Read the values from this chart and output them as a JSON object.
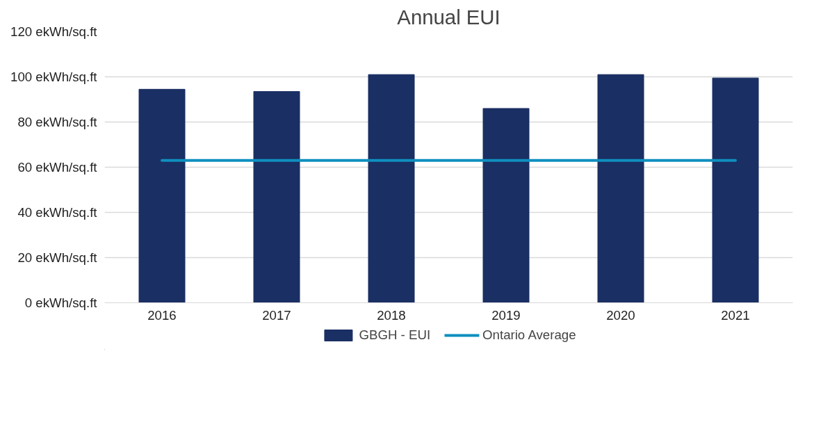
{
  "chart_data": {
    "type": "bar",
    "title": "Annual EUI",
    "categories": [
      "2016",
      "2017",
      "2018",
      "2019",
      "2020",
      "2021"
    ],
    "series": [
      {
        "name": "GBGH - EUI",
        "color": "#1a2f63",
        "values": [
          94.5,
          93.5,
          101,
          86,
          101,
          99.5
        ]
      },
      {
        "name": "Ontario Average",
        "type": "line",
        "color": "#0e8fbf",
        "values": [
          63,
          63,
          63,
          63,
          63,
          63
        ]
      }
    ],
    "ylim": [
      0,
      120
    ],
    "yticks": [
      {
        "value": 0,
        "label": "0 ekWh/sq.ft"
      },
      {
        "value": 20,
        "label": "20 ekWh/sq.ft"
      },
      {
        "value": 40,
        "label": "40 ekWh/sq.ft"
      },
      {
        "value": 60,
        "label": "60 ekWh/sq.ft"
      },
      {
        "value": 80,
        "label": "80 ekWh/sq.ft"
      },
      {
        "value": 100,
        "label": "100 ekWh/sq.ft"
      },
      {
        "value": 120,
        "label": "120 ekWh/sq.ft"
      }
    ],
    "grid": "y",
    "legend": "bottom",
    "marker": "none",
    "line_style": "solid"
  }
}
